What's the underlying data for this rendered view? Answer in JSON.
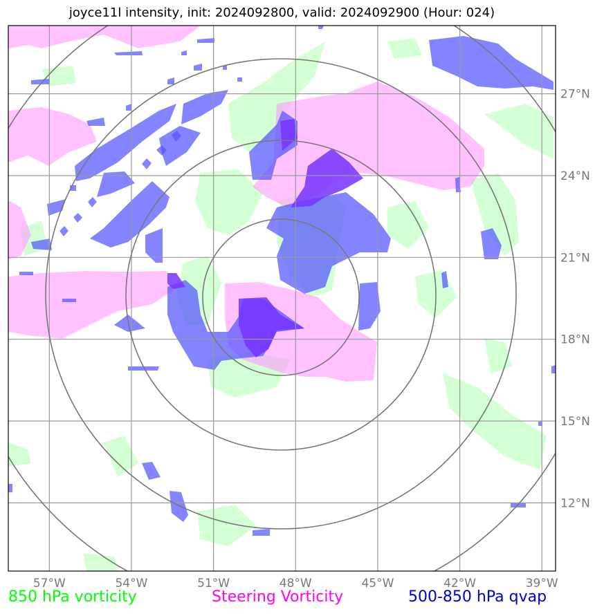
{
  "title": "joyce11l intensity, init: 2024092800, valid: 2024092900 (Hour: 024)",
  "map": {
    "lon_range": [
      -58.5,
      -38.5
    ],
    "lat_range": [
      9.5,
      29.5
    ],
    "lon_ticks": [
      "57°W",
      "54°W",
      "51°W",
      "48°W",
      "45°W",
      "42°W",
      "39°W"
    ],
    "lat_ticks": [
      "27°N",
      "24°N",
      "21°N",
      "18°N",
      "15°N",
      "12°N"
    ],
    "lon_values": [
      -57,
      -54,
      -51,
      -48,
      -45,
      -42,
      -39
    ],
    "lat_values": [
      27,
      24,
      21,
      18,
      15,
      12
    ],
    "range_rings_center": {
      "lon": -48.5,
      "lat": 19.6
    },
    "range_rings_count": 4,
    "colors": {
      "vorticity_850": "#ccffcc",
      "steering_vorticity": "#ff99ff",
      "qvap": "#5555ff",
      "qvap_strong": "#7733ff",
      "grid": "#999999",
      "rings": "#777777"
    }
  },
  "legend": {
    "vorticity_850": "850 hPa vorticity",
    "steering": "Steering Vorticity",
    "qvap": "500-850 hPa qvap",
    "vorticity_850_color": "#00ff00",
    "steering_color": "#ff00ff",
    "qvap_color": "#0000cc"
  }
}
